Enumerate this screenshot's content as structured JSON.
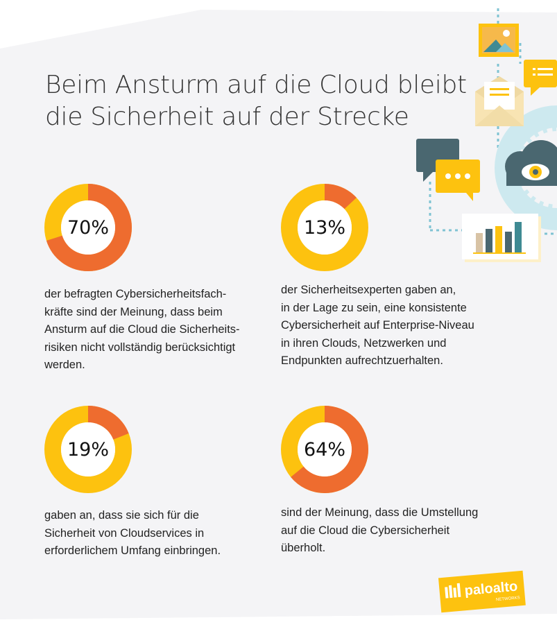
{
  "title": {
    "line1": "Beim Ansturm auf die Cloud bleibt",
    "line2": "die Sicherheit auf der Strecke"
  },
  "colors": {
    "orange": "#ee6c2f",
    "yellow": "#fdc20f",
    "teal": "#3f8a93",
    "dark_teal": "#4a6770",
    "light_blue": "#cde9ef",
    "background": "#f4f4f6"
  },
  "stats": [
    {
      "percent_label": "70%",
      "value": 70,
      "segment_color": "orange",
      "rest_color": "yellow",
      "lines": [
        "der befragten Cybersicherheitsfach-",
        "kräfte sind der Meinung, dass beim",
        "Ansturm auf die Cloud die Sicherheits-",
        "risiken nicht vollständig berücksichtigt",
        "werden."
      ]
    },
    {
      "percent_label": "13%",
      "value": 13,
      "segment_color": "orange",
      "rest_color": "yellow",
      "lines": [
        "der Sicherheitsexperten gaben an,",
        "in der Lage zu sein, eine konsistente",
        "Cybersicherheit auf Enterprise-Niveau",
        "in ihren Clouds, Netzwerken und",
        "Endpunkten aufrechtzuerhalten."
      ]
    },
    {
      "percent_label": "19%",
      "value": 19,
      "segment_color": "orange",
      "rest_color": "yellow",
      "lines": [
        "gaben an, dass sie sich für die",
        "Sicherheit von Cloudservices in",
        "erforderlichem Umfang einbringen."
      ]
    },
    {
      "percent_label": "64%",
      "value": 64,
      "segment_color": "orange",
      "rest_color": "yellow",
      "lines": [
        "sind der Meinung, dass die Umstellung",
        "auf die Cloud die Cybersicherheit",
        "überholt."
      ]
    }
  ],
  "logo": {
    "text": "paloalto",
    "subtext": "NETWORKS",
    "icon": "paloalto-logo-icon"
  },
  "illustration": {
    "icons": [
      "image-icon",
      "list-message-icon",
      "envelope-icon",
      "chat-bubble-icon",
      "eye-cloud-icon",
      "bar-chart-icon"
    ]
  }
}
